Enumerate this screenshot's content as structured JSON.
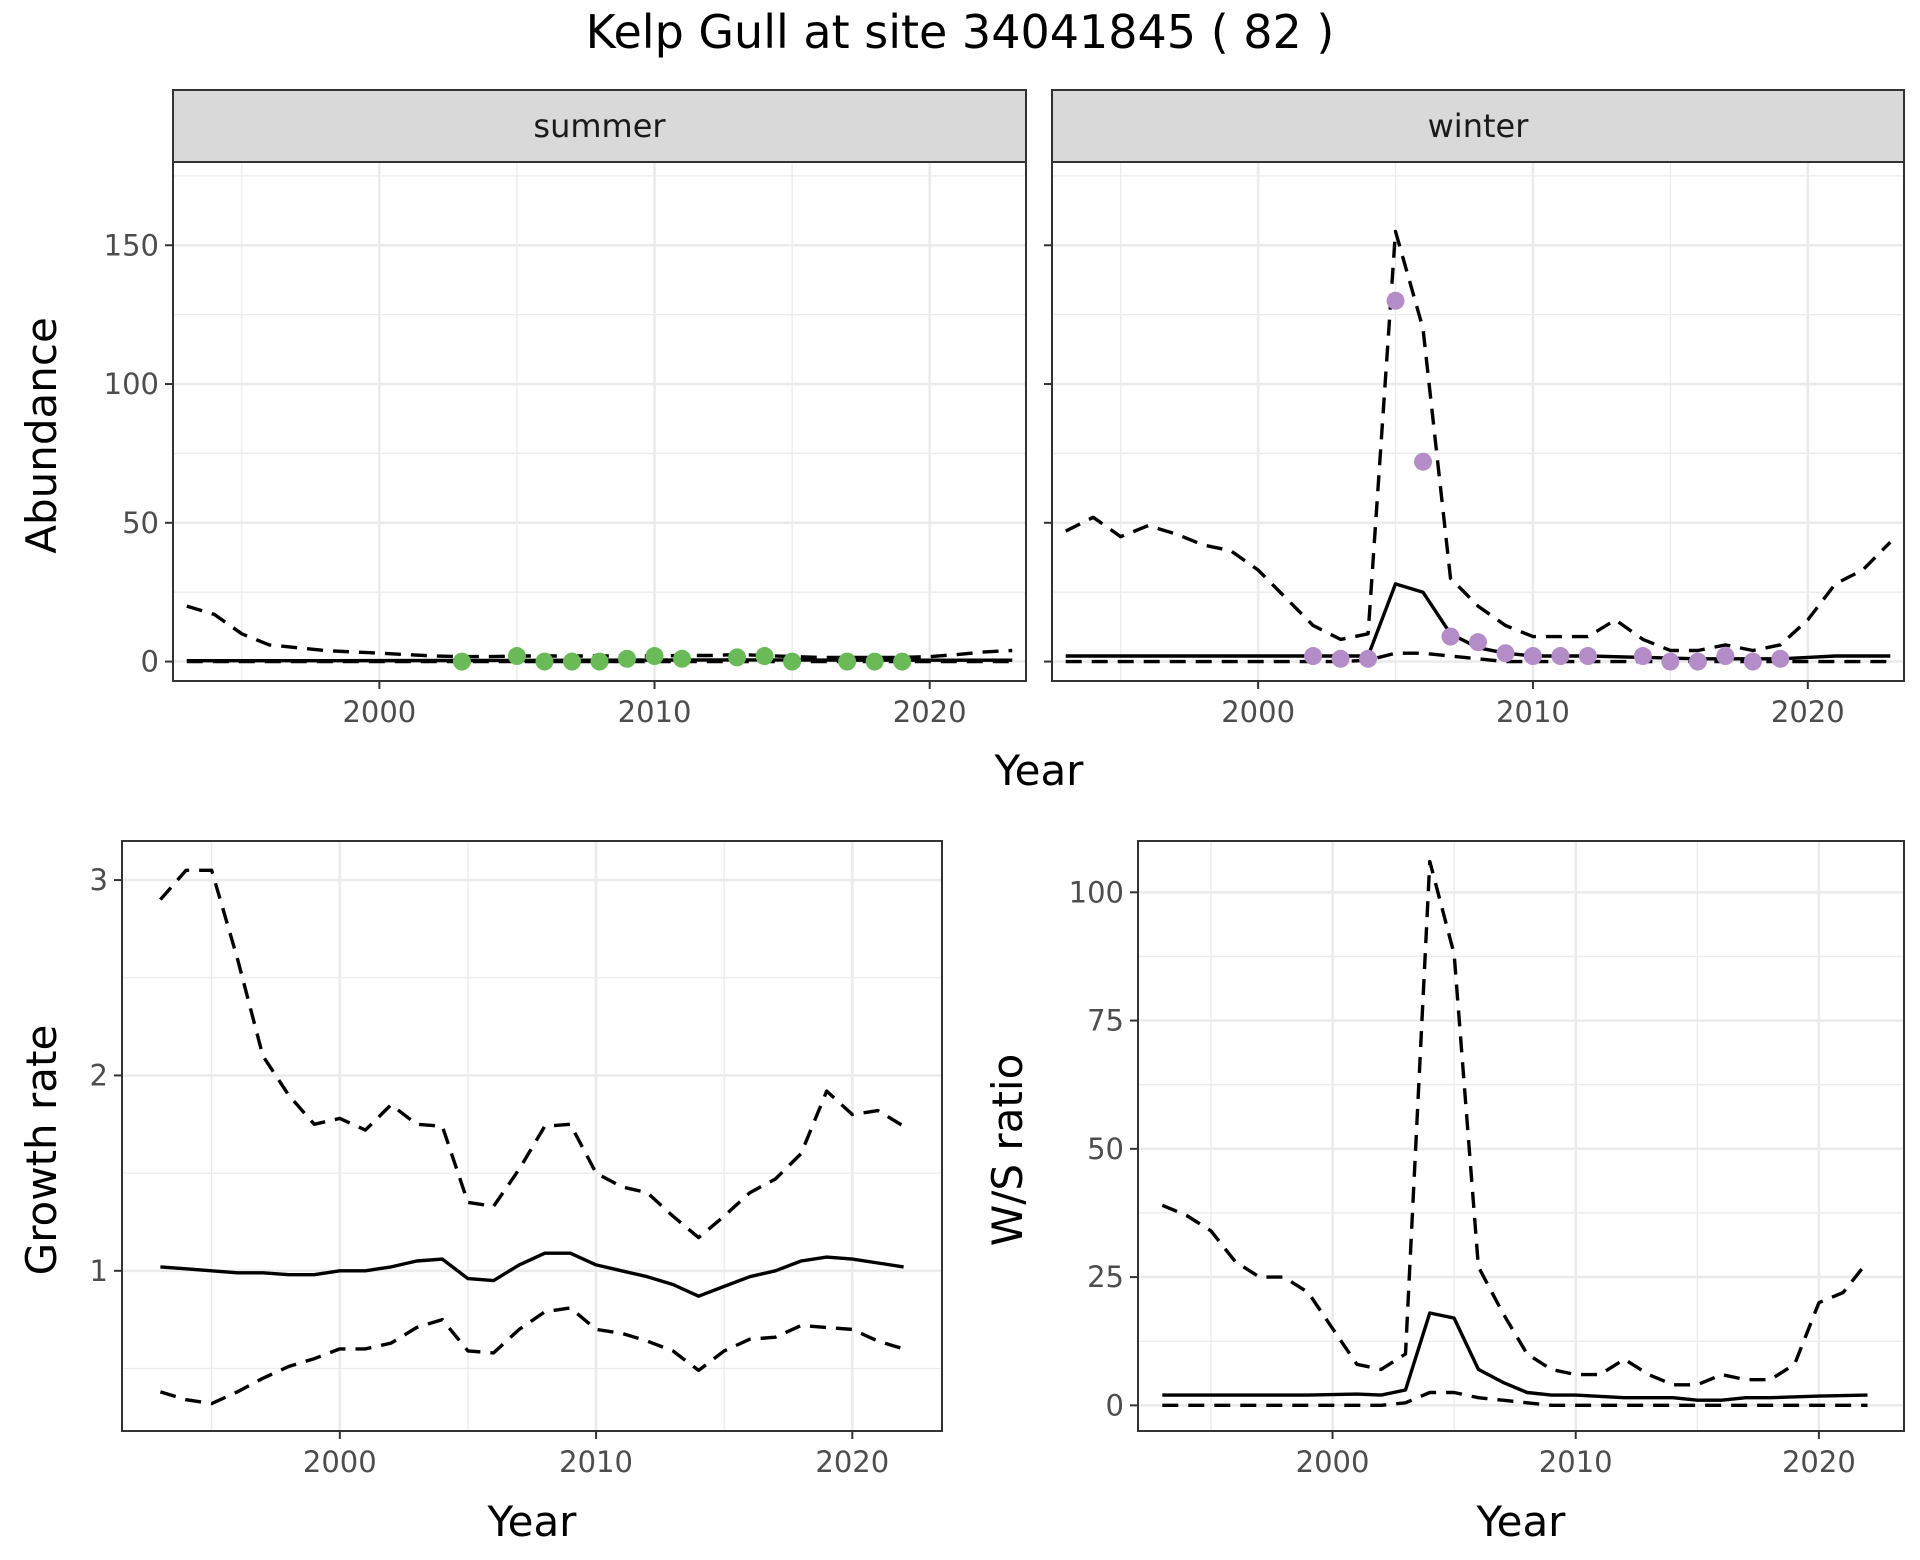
{
  "title": "Kelp Gull at site 34041845 ( 82 )",
  "colors": {
    "summer_points": "#6aba58",
    "winter_points": "#b48cc8",
    "line": "#000000",
    "strip_fill": "#d9d9d9"
  },
  "chart_data": [
    {
      "type": "line",
      "facet": "summer",
      "xlabel": "Year",
      "ylabel": "Abundance",
      "xlim": [
        1992.5,
        2023.5
      ],
      "ylim": [
        -7,
        180
      ],
      "xticks": [
        2000,
        2010,
        2020
      ],
      "yticks": [
        0,
        50,
        100,
        150
      ],
      "grid": true,
      "series": [
        {
          "role": "mean",
          "style": "solid",
          "x": [
            1993,
            1998,
            2003,
            2008,
            2013,
            2018,
            2023
          ],
          "y": [
            0.3,
            0.3,
            0.4,
            0.5,
            0.6,
            0.5,
            0.5
          ]
        },
        {
          "role": "upper",
          "style": "dashed",
          "x": [
            1993,
            1994,
            1995,
            1996,
            1997,
            1998,
            1999,
            2000,
            2001,
            2002,
            2003,
            2004,
            2005,
            2006,
            2007,
            2008,
            2009,
            2010,
            2011,
            2012,
            2013,
            2014,
            2015,
            2016,
            2017,
            2018,
            2019,
            2020,
            2021,
            2022,
            2023
          ],
          "y": [
            20,
            17,
            10,
            6,
            5,
            4,
            3.5,
            3,
            2.5,
            2,
            1.8,
            1.8,
            2,
            2,
            2,
            2,
            2,
            2,
            2.2,
            2.2,
            2.5,
            2.2,
            1.8,
            1.5,
            1.5,
            1.5,
            1.5,
            1.8,
            2.5,
            3.5,
            4
          ]
        },
        {
          "role": "lower",
          "style": "dashed",
          "x": [
            1993,
            2023
          ],
          "y": [
            0,
            0
          ]
        }
      ],
      "points": {
        "x": [
          2003,
          2005,
          2006,
          2007,
          2008,
          2009,
          2010,
          2011,
          2013,
          2014,
          2015,
          2017,
          2018,
          2019
        ],
        "y": [
          0,
          2,
          0,
          0,
          0,
          1,
          2,
          1,
          1.5,
          2,
          0,
          0,
          0,
          0
        ]
      }
    },
    {
      "type": "line",
      "facet": "winter",
      "xlabel": "Year",
      "ylabel": "Abundance",
      "xlim": [
        1992.5,
        2023.5
      ],
      "ylim": [
        -7,
        180
      ],
      "xticks": [
        2000,
        2010,
        2020
      ],
      "yticks": [
        0,
        50,
        100,
        150
      ],
      "grid": true,
      "series": [
        {
          "role": "mean",
          "style": "solid",
          "x": [
            1993,
            1996,
            1999,
            2002,
            2003,
            2004,
            2005,
            2006,
            2007,
            2008,
            2009,
            2010,
            2012,
            2014,
            2016,
            2018,
            2019,
            2020,
            2021,
            2023
          ],
          "y": [
            2,
            2,
            2,
            2,
            2,
            2,
            28,
            25,
            10,
            5,
            3,
            2,
            2,
            1.5,
            1,
            1,
            1,
            1.5,
            2,
            2
          ]
        },
        {
          "role": "upper",
          "style": "dashed",
          "x": [
            1993,
            1994,
            1995,
            1996,
            1997,
            1998,
            1999,
            2000,
            2001,
            2002,
            2003,
            2004,
            2005,
            2006,
            2007,
            2008,
            2009,
            2010,
            2011,
            2012,
            2013,
            2014,
            2015,
            2016,
            2017,
            2018,
            2019,
            2020,
            2021,
            2022,
            2023
          ],
          "y": [
            47,
            52,
            45,
            49,
            46,
            42,
            40,
            33,
            23,
            13,
            8,
            10,
            155,
            120,
            30,
            20,
            13,
            9,
            9,
            9,
            15,
            8,
            4,
            4,
            6,
            4,
            6,
            15,
            28,
            33,
            43
          ]
        },
        {
          "role": "lower",
          "style": "dashed",
          "x": [
            1993,
            2003,
            2004,
            2005,
            2006,
            2007,
            2008,
            2009,
            2023
          ],
          "y": [
            0,
            0,
            0.5,
            3,
            3,
            2,
            1,
            0,
            0
          ]
        }
      ],
      "points": {
        "x": [
          2002,
          2003,
          2004,
          2005,
          2006,
          2007,
          2008,
          2009,
          2010,
          2011,
          2012,
          2014,
          2015,
          2016,
          2017,
          2018,
          2019
        ],
        "y": [
          2,
          1,
          1,
          130,
          72,
          9,
          7,
          3,
          2,
          2,
          2,
          2,
          0,
          0,
          2,
          0,
          1
        ]
      }
    },
    {
      "type": "line",
      "facet": "",
      "xlabel": "Year",
      "ylabel": "Growth rate",
      "xlim": [
        1991.5,
        2023.5
      ],
      "ylim": [
        0.18,
        3.2
      ],
      "xticks": [
        2000,
        2010,
        2020
      ],
      "yticks": [
        1,
        2,
        3
      ],
      "grid": true,
      "series": [
        {
          "role": "mean",
          "style": "solid",
          "x": [
            1993,
            1994,
            1995,
            1996,
            1997,
            1998,
            1999,
            2000,
            2001,
            2002,
            2003,
            2004,
            2005,
            2006,
            2007,
            2008,
            2009,
            2010,
            2011,
            2012,
            2013,
            2014,
            2015,
            2016,
            2017,
            2018,
            2019,
            2020,
            2021,
            2022
          ],
          "y": [
            1.02,
            1.01,
            1.0,
            0.99,
            0.99,
            0.98,
            0.98,
            1.0,
            1.0,
            1.02,
            1.05,
            1.06,
            0.96,
            0.95,
            1.03,
            1.09,
            1.09,
            1.03,
            1.0,
            0.97,
            0.93,
            0.87,
            0.92,
            0.97,
            1.0,
            1.05,
            1.07,
            1.06,
            1.04,
            1.02
          ]
        },
        {
          "role": "upper",
          "style": "dashed",
          "x": [
            1993,
            1994,
            1995,
            1996,
            1997,
            1998,
            1999,
            2000,
            2001,
            2002,
            2003,
            2004,
            2005,
            2006,
            2007,
            2008,
            2009,
            2010,
            2011,
            2012,
            2013,
            2014,
            2015,
            2016,
            2017,
            2018,
            2019,
            2020,
            2021,
            2022
          ],
          "y": [
            2.9,
            3.05,
            3.05,
            2.6,
            2.1,
            1.9,
            1.75,
            1.78,
            1.72,
            1.85,
            1.75,
            1.74,
            1.35,
            1.33,
            1.52,
            1.74,
            1.75,
            1.5,
            1.43,
            1.4,
            1.28,
            1.17,
            1.28,
            1.4,
            1.47,
            1.6,
            1.92,
            1.8,
            1.82,
            1.74
          ]
        },
        {
          "role": "lower",
          "style": "dashed",
          "x": [
            1993,
            1994,
            1995,
            1996,
            1997,
            1998,
            1999,
            2000,
            2001,
            2002,
            2003,
            2004,
            2005,
            2006,
            2007,
            2008,
            2009,
            2010,
            2011,
            2012,
            2013,
            2014,
            2015,
            2016,
            2017,
            2018,
            2019,
            2020,
            2021,
            2022
          ],
          "y": [
            0.38,
            0.34,
            0.32,
            0.38,
            0.45,
            0.51,
            0.55,
            0.6,
            0.6,
            0.63,
            0.71,
            0.75,
            0.59,
            0.58,
            0.7,
            0.79,
            0.81,
            0.7,
            0.68,
            0.64,
            0.59,
            0.49,
            0.59,
            0.65,
            0.66,
            0.72,
            0.71,
            0.7,
            0.64,
            0.6
          ]
        }
      ]
    },
    {
      "type": "line",
      "facet": "",
      "xlabel": "Year",
      "ylabel": "W/S ratio",
      "xlim": [
        1992.0,
        2023.5
      ],
      "ylim": [
        -5,
        110
      ],
      "xticks": [
        2000,
        2010,
        2020
      ],
      "yticks": [
        0,
        25,
        50,
        75,
        100
      ],
      "grid": true,
      "series": [
        {
          "role": "mean",
          "style": "solid",
          "x": [
            1993,
            1996,
            1999,
            2001,
            2002,
            2003,
            2004,
            2005,
            2006,
            2007,
            2008,
            2009,
            2010,
            2012,
            2014,
            2015,
            2016,
            2017,
            2018,
            2020,
            2022
          ],
          "y": [
            2,
            2,
            2,
            2.2,
            2,
            3,
            18,
            17,
            7,
            4.5,
            2.5,
            2,
            2,
            1.5,
            1.5,
            1,
            1,
            1.5,
            1.5,
            1.8,
            2
          ]
        },
        {
          "role": "upper",
          "style": "dashed",
          "x": [
            1993,
            1994,
            1995,
            1996,
            1997,
            1998,
            1999,
            2000,
            2001,
            2002,
            2003,
            2004,
            2005,
            2006,
            2007,
            2008,
            2009,
            2010,
            2011,
            2012,
            2013,
            2014,
            2015,
            2016,
            2017,
            2018,
            2019,
            2020,
            2021,
            2022
          ],
          "y": [
            39,
            37,
            34,
            28,
            25,
            25,
            22,
            15,
            8,
            7,
            10,
            106,
            88,
            27,
            18,
            10,
            7,
            6,
            6,
            9,
            6,
            4,
            4,
            6,
            5,
            5,
            8,
            20,
            22,
            28
          ]
        },
        {
          "role": "lower",
          "style": "dashed",
          "x": [
            1993,
            2002,
            2003,
            2004,
            2005,
            2006,
            2007,
            2008,
            2009,
            2022
          ],
          "y": [
            0,
            0,
            0.5,
            2.5,
            2.5,
            1.5,
            1,
            0.5,
            0,
            0
          ]
        }
      ]
    }
  ]
}
